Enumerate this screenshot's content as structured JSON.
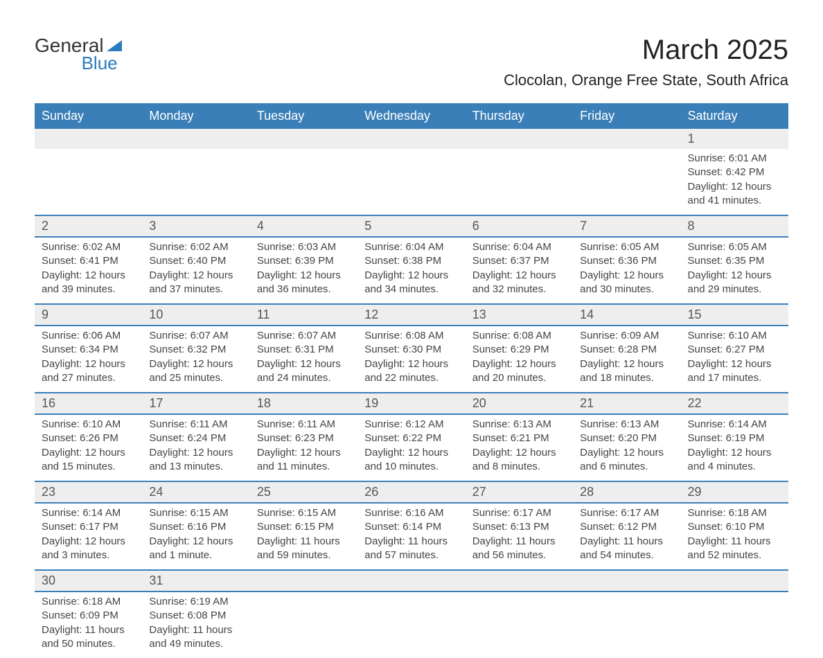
{
  "logo": {
    "text1": "General",
    "text2": "Blue"
  },
  "header": {
    "month_title": "March 2025",
    "location": "Clocolan, Orange Free State, South Africa"
  },
  "calendar": {
    "header_bg": "#3a7fb8",
    "header_fg": "#ffffff",
    "daynum_bg": "#eeeeee",
    "border_color": "#3a7fb8",
    "text_color": "#444444",
    "days_of_week": [
      "Sunday",
      "Monday",
      "Tuesday",
      "Wednesday",
      "Thursday",
      "Friday",
      "Saturday"
    ],
    "weeks": [
      [
        null,
        null,
        null,
        null,
        null,
        null,
        {
          "n": "1",
          "sr": "6:01 AM",
          "ss": "6:42 PM",
          "dl": "12 hours and 41 minutes."
        }
      ],
      [
        {
          "n": "2",
          "sr": "6:02 AM",
          "ss": "6:41 PM",
          "dl": "12 hours and 39 minutes."
        },
        {
          "n": "3",
          "sr": "6:02 AM",
          "ss": "6:40 PM",
          "dl": "12 hours and 37 minutes."
        },
        {
          "n": "4",
          "sr": "6:03 AM",
          "ss": "6:39 PM",
          "dl": "12 hours and 36 minutes."
        },
        {
          "n": "5",
          "sr": "6:04 AM",
          "ss": "6:38 PM",
          "dl": "12 hours and 34 minutes."
        },
        {
          "n": "6",
          "sr": "6:04 AM",
          "ss": "6:37 PM",
          "dl": "12 hours and 32 minutes."
        },
        {
          "n": "7",
          "sr": "6:05 AM",
          "ss": "6:36 PM",
          "dl": "12 hours and 30 minutes."
        },
        {
          "n": "8",
          "sr": "6:05 AM",
          "ss": "6:35 PM",
          "dl": "12 hours and 29 minutes."
        }
      ],
      [
        {
          "n": "9",
          "sr": "6:06 AM",
          "ss": "6:34 PM",
          "dl": "12 hours and 27 minutes."
        },
        {
          "n": "10",
          "sr": "6:07 AM",
          "ss": "6:32 PM",
          "dl": "12 hours and 25 minutes."
        },
        {
          "n": "11",
          "sr": "6:07 AM",
          "ss": "6:31 PM",
          "dl": "12 hours and 24 minutes."
        },
        {
          "n": "12",
          "sr": "6:08 AM",
          "ss": "6:30 PM",
          "dl": "12 hours and 22 minutes."
        },
        {
          "n": "13",
          "sr": "6:08 AM",
          "ss": "6:29 PM",
          "dl": "12 hours and 20 minutes."
        },
        {
          "n": "14",
          "sr": "6:09 AM",
          "ss": "6:28 PM",
          "dl": "12 hours and 18 minutes."
        },
        {
          "n": "15",
          "sr": "6:10 AM",
          "ss": "6:27 PM",
          "dl": "12 hours and 17 minutes."
        }
      ],
      [
        {
          "n": "16",
          "sr": "6:10 AM",
          "ss": "6:26 PM",
          "dl": "12 hours and 15 minutes."
        },
        {
          "n": "17",
          "sr": "6:11 AM",
          "ss": "6:24 PM",
          "dl": "12 hours and 13 minutes."
        },
        {
          "n": "18",
          "sr": "6:11 AM",
          "ss": "6:23 PM",
          "dl": "12 hours and 11 minutes."
        },
        {
          "n": "19",
          "sr": "6:12 AM",
          "ss": "6:22 PM",
          "dl": "12 hours and 10 minutes."
        },
        {
          "n": "20",
          "sr": "6:13 AM",
          "ss": "6:21 PM",
          "dl": "12 hours and 8 minutes."
        },
        {
          "n": "21",
          "sr": "6:13 AM",
          "ss": "6:20 PM",
          "dl": "12 hours and 6 minutes."
        },
        {
          "n": "22",
          "sr": "6:14 AM",
          "ss": "6:19 PM",
          "dl": "12 hours and 4 minutes."
        }
      ],
      [
        {
          "n": "23",
          "sr": "6:14 AM",
          "ss": "6:17 PM",
          "dl": "12 hours and 3 minutes."
        },
        {
          "n": "24",
          "sr": "6:15 AM",
          "ss": "6:16 PM",
          "dl": "12 hours and 1 minute."
        },
        {
          "n": "25",
          "sr": "6:15 AM",
          "ss": "6:15 PM",
          "dl": "11 hours and 59 minutes."
        },
        {
          "n": "26",
          "sr": "6:16 AM",
          "ss": "6:14 PM",
          "dl": "11 hours and 57 minutes."
        },
        {
          "n": "27",
          "sr": "6:17 AM",
          "ss": "6:13 PM",
          "dl": "11 hours and 56 minutes."
        },
        {
          "n": "28",
          "sr": "6:17 AM",
          "ss": "6:12 PM",
          "dl": "11 hours and 54 minutes."
        },
        {
          "n": "29",
          "sr": "6:18 AM",
          "ss": "6:10 PM",
          "dl": "11 hours and 52 minutes."
        }
      ],
      [
        {
          "n": "30",
          "sr": "6:18 AM",
          "ss": "6:09 PM",
          "dl": "11 hours and 50 minutes."
        },
        {
          "n": "31",
          "sr": "6:19 AM",
          "ss": "6:08 PM",
          "dl": "11 hours and 49 minutes."
        },
        null,
        null,
        null,
        null,
        null
      ]
    ],
    "labels": {
      "sunrise": "Sunrise: ",
      "sunset": "Sunset: ",
      "daylight": "Daylight: "
    }
  }
}
